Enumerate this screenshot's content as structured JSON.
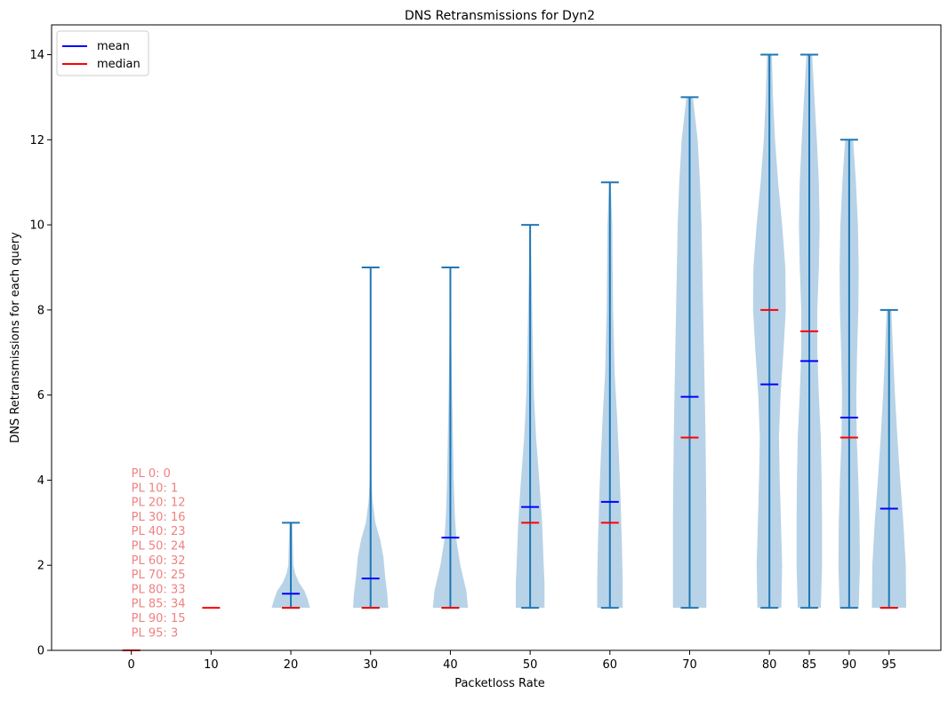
{
  "chart_data": {
    "type": "violin",
    "title": "DNS Retransmissions for Dyn2",
    "xlabel": "Packetloss Rate",
    "ylabel": "DNS Retransmissions for each query",
    "ylim": [
      0,
      14.7
    ],
    "yticks": [
      0,
      2,
      4,
      6,
      8,
      10,
      12,
      14
    ],
    "xlim": [
      -10,
      101.5
    ],
    "x_positions": [
      0,
      10,
      20,
      30,
      40,
      50,
      60,
      70,
      80,
      85,
      90,
      95
    ],
    "xtick_labels": [
      "0",
      "10",
      "20",
      "30",
      "40",
      "50",
      "60",
      "70",
      "80",
      "85",
      "90",
      "95"
    ],
    "legend": {
      "placement": "top-left",
      "entries": [
        {
          "label": "mean",
          "color": "#0000ff"
        },
        {
          "label": "median",
          "color": "#ff0000"
        }
      ]
    },
    "colors": {
      "body": "#b8d3e7",
      "stem": "#1f77b4",
      "mean": "#0000ff",
      "median": "#ff0000",
      "annotation": "#f08080"
    },
    "series": [
      {
        "x": 0,
        "min": 0,
        "max": 0,
        "mean": 0,
        "median": 0,
        "profile": []
      },
      {
        "x": 10,
        "min": 1,
        "max": 1,
        "mean": 1,
        "median": 1,
        "profile": []
      },
      {
        "x": 20,
        "min": 1,
        "max": 3,
        "mean": 1.33,
        "median": 1,
        "profile": [
          [
            1,
            2.4
          ],
          [
            1.2,
            2.1
          ],
          [
            1.4,
            1.7
          ],
          [
            1.6,
            1.0
          ],
          [
            1.8,
            0.55
          ],
          [
            2.0,
            0.32
          ],
          [
            2.3,
            0.28
          ],
          [
            2.6,
            0.24
          ],
          [
            3,
            0.18
          ]
        ]
      },
      {
        "x": 30,
        "min": 1,
        "max": 9,
        "mean": 1.69,
        "median": 1,
        "profile": [
          [
            1,
            2.2
          ],
          [
            1.3,
            2.1
          ],
          [
            1.7,
            1.85
          ],
          [
            2.2,
            1.6
          ],
          [
            2.6,
            1.2
          ],
          [
            3.0,
            0.6
          ],
          [
            3.5,
            0.25
          ],
          [
            4.0,
            0.12
          ],
          [
            5,
            0.06
          ],
          [
            7,
            0.05
          ],
          [
            9,
            0.04
          ]
        ]
      },
      {
        "x": 40,
        "min": 1,
        "max": 9,
        "mean": 2.65,
        "median": 1,
        "profile": [
          [
            1,
            2.2
          ],
          [
            1.4,
            2.0
          ],
          [
            2.0,
            1.25
          ],
          [
            2.6,
            0.75
          ],
          [
            3.2,
            0.55
          ],
          [
            4,
            0.42
          ],
          [
            5,
            0.32
          ],
          [
            6,
            0.22
          ],
          [
            7,
            0.14
          ],
          [
            8,
            0.08
          ],
          [
            9,
            0.04
          ]
        ]
      },
      {
        "x": 50,
        "min": 1,
        "max": 10,
        "mean": 3.37,
        "median": 3,
        "profile": [
          [
            1,
            1.8
          ],
          [
            1.6,
            1.8
          ],
          [
            2,
            1.7
          ],
          [
            3,
            1.5
          ],
          [
            4,
            1.15
          ],
          [
            5,
            0.75
          ],
          [
            6,
            0.48
          ],
          [
            7,
            0.35
          ],
          [
            8,
            0.25
          ],
          [
            9,
            0.15
          ],
          [
            10,
            0.05
          ]
        ]
      },
      {
        "x": 60,
        "min": 1,
        "max": 11,
        "mean": 3.49,
        "median": 3,
        "profile": [
          [
            1,
            1.6
          ],
          [
            1.6,
            1.6
          ],
          [
            2.5,
            1.5
          ],
          [
            3.5,
            1.35
          ],
          [
            4.5,
            1.15
          ],
          [
            5.5,
            0.9
          ],
          [
            6.5,
            0.6
          ],
          [
            8,
            0.4
          ],
          [
            9,
            0.35
          ],
          [
            10,
            0.3
          ],
          [
            11,
            0.1
          ]
        ]
      },
      {
        "x": 70,
        "min": 1,
        "max": 13,
        "mean": 5.96,
        "median": 5,
        "profile": [
          [
            1,
            2.1
          ],
          [
            2,
            2.1
          ],
          [
            3,
            2.1
          ],
          [
            4,
            2.05
          ],
          [
            5,
            2.0
          ],
          [
            6,
            1.9
          ],
          [
            7,
            1.8
          ],
          [
            8,
            1.7
          ],
          [
            9,
            1.6
          ],
          [
            10,
            1.5
          ],
          [
            11,
            1.3
          ],
          [
            12,
            1.0
          ],
          [
            13,
            0.4
          ]
        ]
      },
      {
        "x": 80,
        "min": 1,
        "max": 14,
        "mean": 6.25,
        "median": 8,
        "profile": [
          [
            1,
            1.5
          ],
          [
            2,
            1.6
          ],
          [
            3,
            1.45
          ],
          [
            4,
            1.3
          ],
          [
            5,
            1.2
          ],
          [
            6,
            1.4
          ],
          [
            7,
            1.75
          ],
          [
            8,
            2.05
          ],
          [
            9,
            2.0
          ],
          [
            10,
            1.6
          ],
          [
            11,
            1.1
          ],
          [
            12,
            0.7
          ],
          [
            13,
            0.45
          ],
          [
            14,
            0.3
          ]
        ]
      },
      {
        "x": 85,
        "min": 1,
        "max": 14,
        "mean": 6.8,
        "median": 7.5,
        "profile": [
          [
            1,
            1.45
          ],
          [
            2,
            1.6
          ],
          [
            3,
            1.6
          ],
          [
            4,
            1.55
          ],
          [
            5,
            1.45
          ],
          [
            6,
            1.2
          ],
          [
            7,
            1.0
          ],
          [
            8,
            1.0
          ],
          [
            9,
            1.2
          ],
          [
            10,
            1.3
          ],
          [
            11,
            1.2
          ],
          [
            12,
            0.95
          ],
          [
            13,
            0.65
          ],
          [
            14,
            0.35
          ]
        ]
      },
      {
        "x": 90,
        "min": 1,
        "max": 12,
        "mean": 5.47,
        "median": 5,
        "profile": [
          [
            1,
            1.2
          ],
          [
            2,
            1.35
          ],
          [
            3,
            1.3
          ],
          [
            4,
            1.15
          ],
          [
            5,
            0.95
          ],
          [
            6,
            0.9
          ],
          [
            7,
            1.0
          ],
          [
            8,
            1.15
          ],
          [
            9,
            1.2
          ],
          [
            10,
            1.1
          ],
          [
            11,
            0.85
          ],
          [
            12,
            0.5
          ]
        ]
      },
      {
        "x": 95,
        "min": 1,
        "max": 8,
        "mean": 3.33,
        "median": 1,
        "profile": [
          [
            1,
            2.15
          ],
          [
            2,
            2.1
          ],
          [
            3,
            1.8
          ],
          [
            4,
            1.4
          ],
          [
            5,
            1.05
          ],
          [
            6,
            0.75
          ],
          [
            7,
            0.5
          ],
          [
            8,
            0.3
          ]
        ]
      }
    ],
    "annotations": [
      "PL 0: 0",
      "PL 10: 1",
      "PL 20: 12",
      "PL 30: 16",
      "PL 40: 23",
      "PL 50: 24",
      "PL 60: 32",
      "PL 70: 25",
      "PL 80: 33",
      "PL 85: 34",
      "PL 90: 15",
      "PL 95: 3"
    ]
  }
}
